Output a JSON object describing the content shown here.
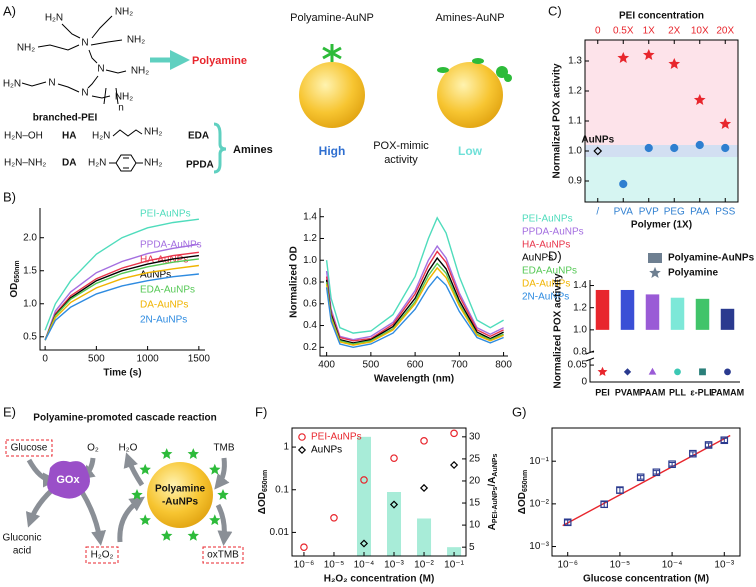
{
  "panel_labels": [
    "A)",
    "B)",
    "C)",
    "D)",
    "E)",
    "F)",
    "G)"
  ],
  "panel_a": {
    "pei_structure": [
      "H₂N",
      "NH₂",
      "NH₂",
      "N",
      "NH₂",
      "H₂N",
      "N",
      "N",
      "NH₂",
      "N",
      "NH₂",
      "n"
    ],
    "pei_name": "branched-PEI",
    "polyamine": "Polyamine",
    "amines": [
      {
        "formula": "H₂N–OH",
        "name": "HA"
      },
      {
        "formula": "H₂N–NH₂",
        "name": "DA"
      },
      {
        "formula": [
          "H₂N",
          "NH₂"
        ],
        "name": "EDA"
      },
      {
        "formula": [
          "H₂N",
          "NH₂"
        ],
        "name": "PPDA"
      }
    ],
    "amines_label": "Amines",
    "nanoparticles": [
      {
        "title": "Polyamine-AuNP",
        "activity": "High"
      },
      {
        "title": "Amines-AuNP",
        "activity": "Low"
      }
    ],
    "activity_caption": [
      "POX-mimic",
      "activity"
    ]
  },
  "panel_e": {
    "title": "Polyamine-promoted cascade reaction",
    "glucose": "Glucose",
    "o2": "O₂",
    "enzyme": "GOx",
    "gluconic_acid": [
      "Gluconic",
      "acid"
    ],
    "h2o2": "H₂O₂",
    "h2o": "H₂O",
    "tmb": "TMB",
    "nanozyme": [
      "Polyamine",
      "-AuNPs"
    ],
    "oxtmb": "oxTMB"
  },
  "chart_data": [
    {
      "type": "line",
      "x": [
        0,
        100,
        250,
        500,
        750,
        1000,
        1250,
        1500
      ],
      "xlim": [
        -50,
        1560
      ],
      "xticks": [
        0,
        500,
        1000,
        1500
      ],
      "ylim": [
        0.3,
        2.45
      ],
      "yticks": [
        0.5,
        {
          "value": 1,
          "label": "1.0"
        },
        1.5,
        {
          "value": 2,
          "label": "2.0"
        }
      ],
      "xlabel": "Time (s)",
      "ylabel": [
        "OD",
        "650nm"
      ],
      "series": [
        {
          "name": "PEI-AuNPs",
          "color": "#4fdcbc",
          "values": [
            0.6,
            1.0,
            1.35,
            1.75,
            2.0,
            2.15,
            2.23,
            2.28
          ]
        },
        {
          "name": "PPDA-AuNPs",
          "color": "#a46fe0",
          "values": [
            0.45,
            0.89,
            1.18,
            1.47,
            1.64,
            1.76,
            1.84,
            1.9
          ]
        },
        {
          "name": "HA-AuNPs",
          "color": "#e8344a",
          "values": [
            0.45,
            0.85,
            1.12,
            1.38,
            1.54,
            1.65,
            1.73,
            1.78
          ]
        },
        {
          "name": "AuNPs",
          "color": "#000000",
          "values": [
            0.45,
            0.83,
            1.09,
            1.35,
            1.5,
            1.6,
            1.68,
            1.73
          ]
        },
        {
          "name": "EDA-AuNPs",
          "color": "#55c855",
          "values": [
            0.45,
            0.82,
            1.07,
            1.31,
            1.46,
            1.56,
            1.63,
            1.68
          ]
        },
        {
          "name": "DA-AuNPs",
          "color": "#f0b400",
          "values": [
            0.45,
            0.79,
            1.02,
            1.24,
            1.38,
            1.47,
            1.53,
            1.58
          ]
        },
        {
          "name": "2N-AuNPs",
          "color": "#2e8be0",
          "values": [
            0.45,
            0.75,
            0.95,
            1.15,
            1.27,
            1.35,
            1.41,
            1.45
          ]
        }
      ]
    },
    {
      "type": "line",
      "x": [
        400,
        410,
        430,
        460,
        500,
        550,
        600,
        630,
        650,
        670,
        700,
        740,
        770,
        800
      ],
      "xlim": [
        385,
        810
      ],
      "xticks": [
        400,
        500,
        600,
        700,
        800
      ],
      "ylim": [
        0.12,
        1.48
      ],
      "yticks": [
        0.2,
        0.4,
        0.6,
        0.8,
        {
          "value": 1,
          "label": "1.0"
        },
        1.2,
        1.4
      ],
      "xlabel": "Wavelength (nm)",
      "ylabel": "Normalized OD",
      "series": [
        {
          "name": "PEI-AuNPs",
          "color": "#4fdcbc",
          "values": [
            1.0,
            0.65,
            0.38,
            0.33,
            0.35,
            0.5,
            0.85,
            1.2,
            1.39,
            1.25,
            0.85,
            0.45,
            0.38,
            0.45
          ]
        },
        {
          "name": "PPDA-AuNPs",
          "color": "#a46fe0",
          "values": [
            0.9,
            0.55,
            0.3,
            0.27,
            0.3,
            0.43,
            0.72,
            1.0,
            1.13,
            1.02,
            0.7,
            0.38,
            0.32,
            0.38
          ]
        },
        {
          "name": "HA-AuNPs",
          "color": "#e8344a",
          "values": [
            0.85,
            0.52,
            0.29,
            0.26,
            0.28,
            0.41,
            0.69,
            0.95,
            1.08,
            0.98,
            0.67,
            0.36,
            0.3,
            0.36
          ]
        },
        {
          "name": "AuNPs",
          "color": "#000000",
          "values": [
            0.82,
            0.5,
            0.27,
            0.24,
            0.27,
            0.39,
            0.65,
            0.9,
            1.02,
            0.92,
            0.63,
            0.34,
            0.28,
            0.34
          ]
        },
        {
          "name": "EDA-AuNPs",
          "color": "#55c855",
          "values": [
            0.8,
            0.48,
            0.26,
            0.23,
            0.26,
            0.37,
            0.62,
            0.86,
            0.97,
            0.88,
            0.6,
            0.32,
            0.27,
            0.32
          ]
        },
        {
          "name": "DA-AuNPs",
          "color": "#f0b400",
          "values": [
            0.78,
            0.46,
            0.25,
            0.22,
            0.25,
            0.36,
            0.6,
            0.82,
            0.93,
            0.84,
            0.58,
            0.31,
            0.26,
            0.31
          ]
        },
        {
          "name": "2N-AuNPs",
          "color": "#2e8be0",
          "values": [
            0.75,
            0.44,
            0.23,
            0.2,
            0.23,
            0.33,
            0.55,
            0.75,
            0.85,
            0.77,
            0.53,
            0.29,
            0.24,
            0.29
          ]
        }
      ]
    },
    {
      "type": "dot",
      "top_label": "PEI concentration",
      "top_categories": [
        "0",
        "0.5X",
        "1X",
        "2X",
        "10X",
        "20X"
      ],
      "top_color": "#e8262d",
      "categories": [
        "/",
        "PVA",
        "PVP",
        "PEG",
        "PAA",
        "PSS"
      ],
      "bottom_color": "#2f7fd0",
      "xlabel": "Polymer (1X)",
      "ylabel": "Normalized POX activity",
      "ylim": [
        0.83,
        1.37
      ],
      "yticks": [
        0.9,
        {
          "value": 1,
          "label": "1.0"
        },
        1.1,
        1.2,
        1.3
      ],
      "annotation": "AuNPs",
      "series": [
        {
          "color": "#000000",
          "marker": "diamond",
          "values": [
            1.0,
            null,
            null,
            null,
            null,
            null
          ]
        },
        {
          "color": "#e8262d",
          "marker": "star",
          "filled": true,
          "values": [
            null,
            1.31,
            1.32,
            1.29,
            1.17,
            1.09
          ]
        },
        {
          "color": "#2f7fd0",
          "marker": "circle",
          "filled": true,
          "values": [
            null,
            0.89,
            1.01,
            1.01,
            1.02,
            1.01
          ]
        }
      ]
    },
    {
      "type": "bar",
      "categories": [
        "PEI",
        "PVAM",
        "PAAM",
        "PLL",
        "ε-PLL",
        "PAMAM"
      ],
      "ylabel": "Normalized  POX activity",
      "ylim": [
        0.8,
        1.45
      ],
      "yticks": [
        0.8,
        {
          "value": 1,
          "label": "1.0"
        },
        1.2,
        1.4
      ],
      "bar_base": 1.0,
      "ylim_lower": [
        0,
        0.065
      ],
      "yticks_lower": [
        0,
        0.05
      ],
      "series": [
        {
          "name": "Polyamine-AuNPs",
          "color": "#6e7f91",
          "colors": [
            "#e8262d",
            "#3a4fd6",
            "#9a5bd6",
            "#7de8d8",
            "#41c46a",
            "#2a3a8f"
          ],
          "values": [
            1.36,
            1.36,
            1.32,
            1.29,
            1.28,
            1.19
          ]
        },
        {
          "name": "Polyamine",
          "color": "#6e7f91",
          "marker": "star",
          "filled": true,
          "markers": [
            "star",
            "diamond",
            "triangle",
            "circle",
            "square",
            "circle"
          ],
          "colors": [
            "#e8262d",
            "#2a3a8f",
            "#9a5bd6",
            "#3cc8b4",
            "#2a7f7a",
            "#2a3a8f"
          ],
          "values": [
            0.03,
            0.03,
            0.03,
            0.03,
            0.03,
            0.03
          ]
        }
      ]
    },
    {
      "type": "scatter",
      "xlog": true,
      "ylog": true,
      "xlim": [
        4e-07,
        0.25
      ],
      "xticks": [
        {
          "value": 1e-06,
          "label": "10⁻⁶"
        },
        {
          "value": 1e-05,
          "label": "10⁻⁵"
        },
        {
          "value": 0.0001,
          "label": "10⁻⁴"
        },
        {
          "value": 0.001,
          "label": "10⁻³"
        },
        {
          "value": 0.01,
          "label": "10⁻²"
        },
        {
          "value": 0.1,
          "label": "10⁻¹"
        }
      ],
      "ylim": [
        0.0028,
        2.8
      ],
      "yticks": [
        0.01,
        0.1,
        1
      ],
      "y2lim": [
        3,
        32
      ],
      "y2ticks": [
        5,
        10,
        15,
        20,
        25,
        30
      ],
      "xlabel": "H₂O₂ concentration (M)",
      "ylabel": [
        "ΔOD",
        "650nm"
      ],
      "y2label": [
        "A",
        "PEI-AuNPs",
        "/A",
        "AuNPs"
      ],
      "legend": "top-left",
      "series": [
        {
          "kind": "bar",
          "axis": "y2",
          "color": "#a8ecd8",
          "x": [
            0.0001,
            0.001,
            0.01,
            0.1
          ],
          "values": [
            30,
            17.5,
            11.5,
            5
          ]
        },
        {
          "name": "PEI-AuNPs",
          "color": "#e8262d",
          "marker": "circle",
          "x": [
            1e-06,
            1e-05,
            0.0001,
            0.001,
            0.01,
            0.1
          ],
          "values": [
            0.0045,
            0.022,
            0.17,
            0.55,
            1.4,
            2.1
          ]
        },
        {
          "name": "AuNPs",
          "color": "#000000",
          "marker": "diamond",
          "x": [
            0.0001,
            0.001,
            0.01,
            0.1
          ],
          "values": [
            0.0055,
            0.045,
            0.11,
            0.38
          ]
        }
      ]
    },
    {
      "type": "scatter",
      "xlog": true,
      "ylog": true,
      "xlim": [
        5e-07,
        0.002
      ],
      "xticks": [
        {
          "value": 1e-06,
          "label": "10⁻⁶"
        },
        {
          "value": 1e-05,
          "label": "10⁻⁵"
        },
        {
          "value": 0.0001,
          "label": "10⁻⁴"
        },
        {
          "value": 0.001,
          "label": "10⁻³"
        }
      ],
      "ylim": [
        0.0006,
        0.6
      ],
      "yticks": [
        {
          "value": 0.001,
          "label": "10⁻³"
        },
        {
          "value": 0.01,
          "label": "10⁻²"
        },
        {
          "value": 0.1,
          "label": "10⁻¹"
        }
      ],
      "xlabel": "Glucose concentration (M)",
      "ylabel": [
        "ΔOD",
        "650nm"
      ],
      "series": [
        {
          "color": "#2a3a8f",
          "marker": "square",
          "x": [
            1e-06,
            5e-06,
            1e-05,
            2.5e-05,
            5e-05,
            0.0001,
            0.00025,
            0.0005,
            0.001
          ],
          "values": [
            0.0037,
            0.0098,
            0.021,
            0.042,
            0.055,
            0.085,
            0.15,
            0.24,
            0.31
          ],
          "errors": [
            0.0005,
            0.0015,
            0.003,
            0.004,
            0.005,
            0.008,
            0.015,
            0.025,
            0.035
          ]
        }
      ],
      "fit": {
        "color": "#e8262d",
        "x": [
          8e-07,
          0.0013
        ],
        "values": [
          0.0031,
          0.4
        ]
      }
    }
  ]
}
